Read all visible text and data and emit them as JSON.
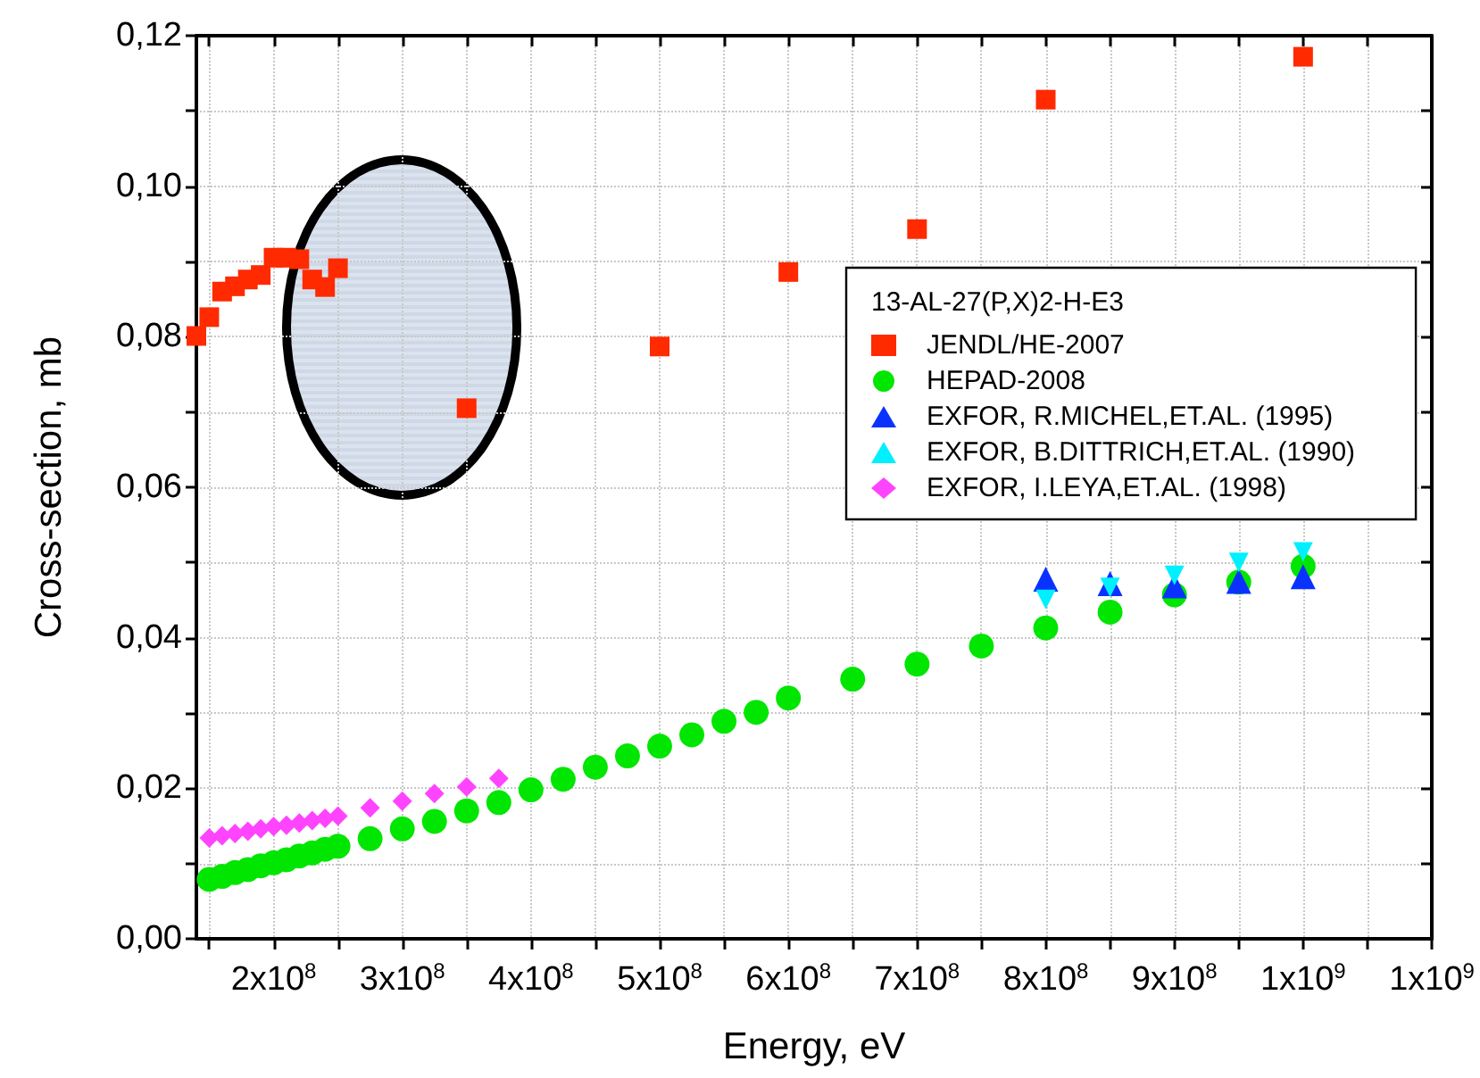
{
  "chart_data": {
    "type": "scatter",
    "xlabel": "Energy, eV",
    "ylabel": "Cross-section, mb",
    "legend_title": "13-AL-27(P,X)2-H-E3",
    "legend": "right",
    "grid": true,
    "xlim": [
      140000000,
      1100000000
    ],
    "xticks": [
      {
        "value": 150000000,
        "label": null
      },
      {
        "value": 200000000,
        "label": "2x10$^{8}$"
      },
      {
        "value": 250000000,
        "label": null
      },
      {
        "value": 300000000,
        "label": "3x10$^{8}$"
      },
      {
        "value": 350000000,
        "label": null
      },
      {
        "value": 400000000,
        "label": "4x10$^{8}$"
      },
      {
        "value": 450000000,
        "label": null
      },
      {
        "value": 500000000,
        "label": "5x10$^{8}$"
      },
      {
        "value": 550000000,
        "label": null
      },
      {
        "value": 600000000,
        "label": "6x10$^{8}$"
      },
      {
        "value": 650000000,
        "label": null
      },
      {
        "value": 700000000,
        "label": "7x10$^{8}$"
      },
      {
        "value": 750000000,
        "label": null
      },
      {
        "value": 800000000,
        "label": "8x10$^{8}$"
      },
      {
        "value": 850000000,
        "label": null
      },
      {
        "value": 900000000,
        "label": "9x10$^{8}$"
      },
      {
        "value": 950000000,
        "label": null
      },
      {
        "value": 1000000000,
        "label": "1x10$^{9}$"
      },
      {
        "value": 1050000000,
        "label": null
      },
      {
        "value": 1100000000,
        "label": "1x10$^{9}$"
      }
    ],
    "ylim": [
      0,
      0.12
    ],
    "yticks": [
      {
        "value": 0,
        "label": "0,00"
      },
      {
        "value": 0.01,
        "label": null
      },
      {
        "value": 0.02,
        "label": "0,02"
      },
      {
        "value": 0.03,
        "label": null
      },
      {
        "value": 0.04,
        "label": "0,04"
      },
      {
        "value": 0.05,
        "label": null
      },
      {
        "value": 0.06,
        "label": "0,06"
      },
      {
        "value": 0.07,
        "label": null
      },
      {
        "value": 0.08,
        "label": "0,08"
      },
      {
        "value": 0.09,
        "label": null
      },
      {
        "value": 0.1,
        "label": "0,10"
      },
      {
        "value": 0.11,
        "label": null
      },
      {
        "value": 0.12,
        "label": "0,12"
      }
    ],
    "series": [
      {
        "name": "JENDL/HE-2007",
        "color": "#ff2a00",
        "marker": "square",
        "x": [
          140000000,
          150000000,
          160000000,
          170000000,
          180000000,
          190000000,
          200000000,
          210000000,
          220000000,
          230000000,
          240000000,
          250000000,
          350000000,
          500000000,
          600000000,
          700000000,
          800000000,
          1000000000
        ],
        "values": [
          0.0801,
          0.0826,
          0.086,
          0.0867,
          0.0876,
          0.0882,
          0.0905,
          0.0905,
          0.0903,
          0.0876,
          0.0866,
          0.0891,
          0.0705,
          0.0787,
          0.0886,
          0.0943,
          0.1115,
          0.1172
        ]
      },
      {
        "name": "HEPAD-2008",
        "color": "#00e600",
        "marker": "circle",
        "x": [
          150000000,
          160000000,
          170000000,
          180000000,
          190000000,
          200000000,
          210000000,
          220000000,
          230000000,
          240000000,
          250000000,
          275000000,
          300000000,
          325000000,
          350000000,
          375000000,
          400000000,
          425000000,
          450000000,
          475000000,
          500000000,
          525000000,
          550000000,
          575000000,
          600000000,
          650000000,
          700000000,
          750000000,
          800000000,
          850000000,
          900000000,
          950000000,
          1000000000
        ],
        "values": [
          0.0079,
          0.0083,
          0.0088,
          0.0092,
          0.0097,
          0.0101,
          0.0105,
          0.011,
          0.0114,
          0.0119,
          0.0123,
          0.0133,
          0.0146,
          0.0156,
          0.017,
          0.0181,
          0.0198,
          0.0212,
          0.0228,
          0.0243,
          0.0256,
          0.0271,
          0.0289,
          0.0301,
          0.032,
          0.0345,
          0.0365,
          0.0389,
          0.0413,
          0.0434,
          0.0457,
          0.0474,
          0.0495
        ]
      },
      {
        "name": "EXFOR, R.MICHEL,ET.AL. (1995)",
        "color": "#0a32ff",
        "marker": "triangle",
        "x": [
          800000000,
          850000000,
          900000000,
          950000000,
          1000000000
        ],
        "values": [
          0.0478,
          0.0472,
          0.0469,
          0.0475,
          0.0481
        ]
      },
      {
        "name": "EXFOR, B.DITTRICH,ET.AL. (1990)",
        "color": "#00f0ff",
        "marker": "triangle-down",
        "x": [
          800000000,
          850000000,
          900000000,
          950000000,
          1000000000
        ],
        "values": [
          0.0451,
          0.0467,
          0.0483,
          0.05,
          0.0514
        ]
      },
      {
        "name": "EXFOR, I.LEYA,ET.AL. (1998)",
        "color": "#ff44ff",
        "marker": "diamond",
        "x": [
          150000000,
          160000000,
          170000000,
          180000000,
          190000000,
          200000000,
          210000000,
          220000000,
          230000000,
          240000000,
          250000000,
          275000000,
          300000000,
          325000000,
          350000000,
          375000000
        ],
        "values": [
          0.0134,
          0.0137,
          0.014,
          0.0143,
          0.0146,
          0.0149,
          0.0151,
          0.0154,
          0.0157,
          0.016,
          0.0163,
          0.0174,
          0.0183,
          0.0193,
          0.0202,
          0.0213
        ]
      }
    ]
  }
}
